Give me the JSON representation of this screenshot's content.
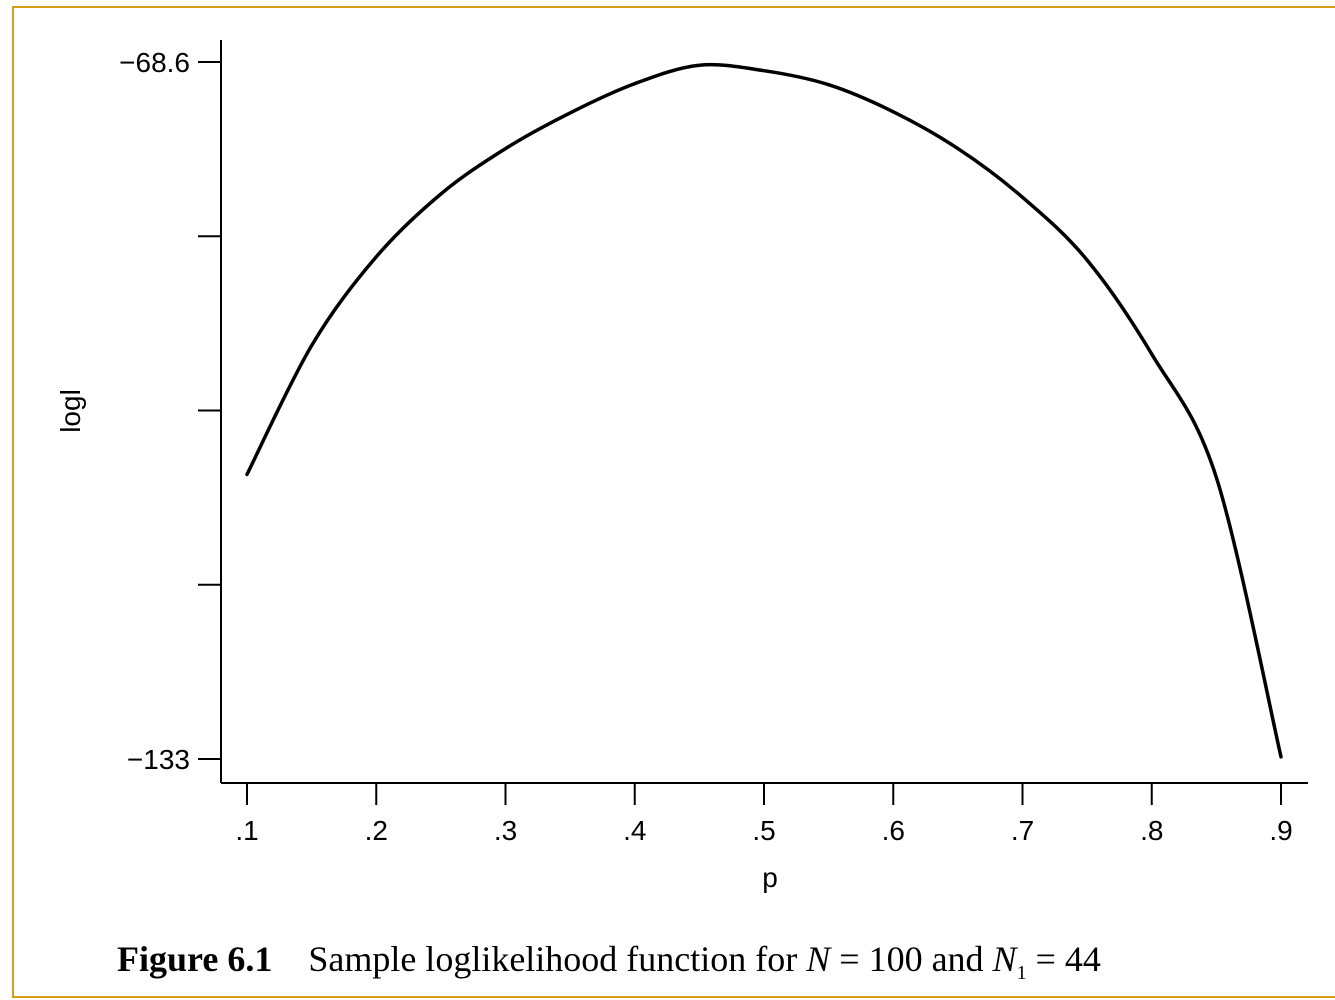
{
  "chart_data": {
    "type": "line",
    "title": "",
    "xlabel": "p",
    "ylabel": "logl",
    "xlim": [
      0.1,
      0.9
    ],
    "ylim": [
      -133,
      -68.6
    ],
    "x_ticks": [
      ".1",
      ".2",
      ".3",
      ".4",
      ".5",
      ".6",
      ".7",
      ".8",
      ".9"
    ],
    "x_tick_values": [
      0.1,
      0.2,
      0.3,
      0.4,
      0.5,
      0.6,
      0.7,
      0.8,
      0.9
    ],
    "y_tick_values": [
      -68.6,
      -84.7,
      -100.8,
      -116.9,
      -133
    ],
    "y_tick_labels": [
      "−68.6",
      "",
      "",
      "",
      "−133"
    ],
    "grid": false,
    "legend": "none",
    "x": [
      0.1,
      0.15,
      0.2,
      0.25,
      0.3,
      0.35,
      0.4,
      0.45,
      0.5,
      0.55,
      0.6,
      0.65,
      0.7,
      0.75,
      0.8,
      0.85,
      0.9
    ],
    "series": [
      {
        "values": [
          -106.7,
          -94.8,
          -86.6,
          -80.8,
          -76.6,
          -73.3,
          -70.6,
          -68.9,
          -69.4,
          -70.7,
          -73.2,
          -76.6,
          -81.1,
          -86.9,
          -95.6,
          -107.0,
          -132.8
        ]
      }
    ]
  },
  "caption": {
    "figure_label": "Figure 6.1",
    "text_before": "Sample loglikelihood function for ",
    "var1": "N",
    "eq1": " = 100 and ",
    "var2": "N",
    "sub2": "1",
    "eq2": " = 44"
  },
  "colors": {
    "frame": "#d4a017",
    "line": "#000000"
  }
}
